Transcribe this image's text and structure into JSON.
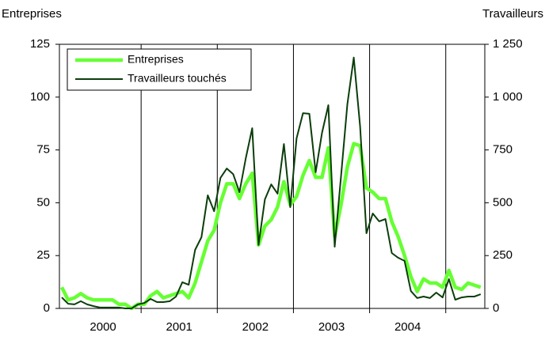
{
  "chart_data": {
    "type": "line",
    "y_label": "Entreprises",
    "y2_label": "Travailleurs",
    "categories": [
      null,
      null,
      null,
      null,
      null,
      null,
      "2000",
      null,
      null,
      null,
      null,
      null,
      null,
      null,
      null,
      null,
      null,
      null,
      "2001",
      null,
      null,
      null,
      null,
      null,
      null,
      null,
      null,
      null,
      null,
      null,
      "2002",
      null,
      null,
      null,
      null,
      null,
      null,
      null,
      null,
      null,
      null,
      null,
      "2003",
      null,
      null,
      null,
      null,
      null,
      null,
      null,
      null,
      null,
      null,
      null,
      "2004",
      null,
      null,
      null,
      null,
      null,
      null,
      null,
      null,
      null,
      null,
      null,
      null
    ],
    "series": [
      {
        "name": "Entreprises",
        "color": "#66ff33",
        "axis": "y",
        "values": [
          10,
          4,
          5,
          7,
          5,
          4,
          4,
          4,
          4,
          2,
          2,
          0,
          2,
          2,
          6,
          8,
          5,
          6,
          7,
          8,
          5,
          12,
          22,
          32,
          37,
          50,
          59,
          59,
          52,
          59,
          64,
          30,
          39,
          42,
          48,
          60,
          49,
          53,
          63,
          70,
          62,
          62,
          76,
          34,
          49,
          67,
          78,
          77,
          57,
          55,
          52,
          52,
          41,
          34,
          25,
          15,
          8,
          14,
          12,
          12,
          10,
          18,
          10,
          9,
          12,
          11,
          10
        ]
      },
      {
        "name": "Travailleurs touchés",
        "color": "#0b3d0b",
        "axis": "y2",
        "values": [
          52,
          22,
          19,
          34,
          19,
          11,
          4,
          4,
          4,
          4,
          0,
          0,
          19,
          26,
          45,
          30,
          30,
          34,
          56,
          124,
          112,
          277,
          337,
          535,
          460,
          618,
          662,
          636,
          550,
          711,
          853,
          300,
          516,
          587,
          543,
          778,
          479,
          805,
          924,
          921,
          644,
          831,
          962,
          292,
          625,
          966,
          1187,
          861,
          356,
          449,
          412,
          423,
          262,
          240,
          225,
          82,
          49,
          56,
          49,
          75,
          52,
          139,
          41,
          52,
          56,
          56,
          67
        ]
      }
    ],
    "ylim": [
      0,
      125
    ],
    "yticks": [
      0,
      25,
      50,
      75,
      100,
      125
    ],
    "y2lim": [
      0,
      1250
    ],
    "y2ticks": [
      0,
      250,
      500,
      750,
      {
        "value": 1000,
        "label": "1 000"
      },
      {
        "value": 1250,
        "label": "1 250"
      }
    ],
    "legend": "top-left"
  }
}
